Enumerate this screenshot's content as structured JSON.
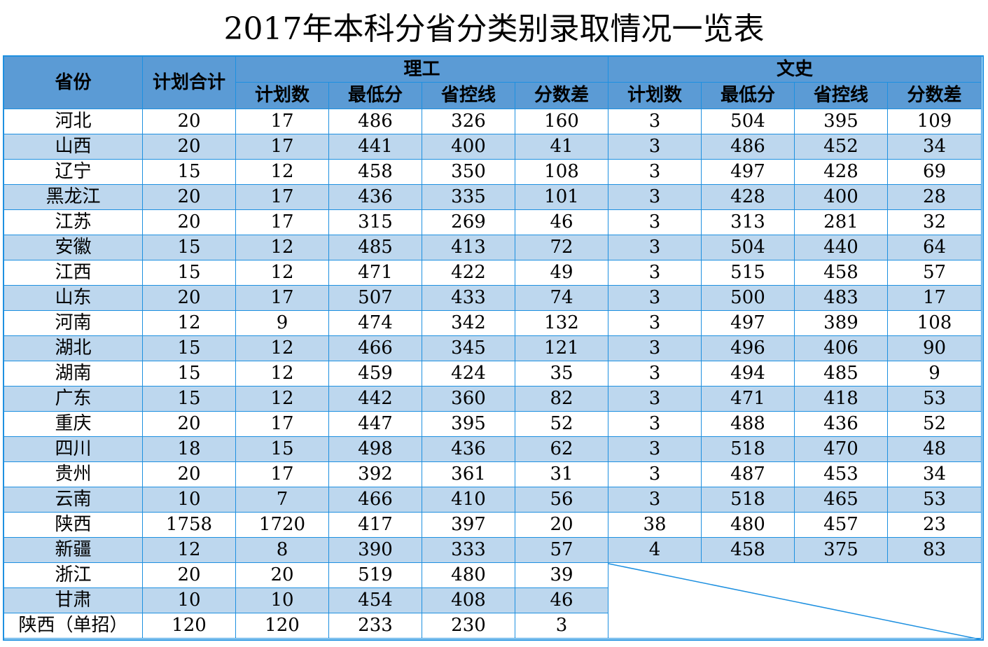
{
  "title": "2017年本科分省分类别录取情况一览表",
  "header": {
    "province": "省份",
    "plan_total": "计划合计",
    "science_group": "理工",
    "arts_group": "文史",
    "sub": [
      "计划数",
      "最低分",
      "省控线",
      "分数差"
    ]
  },
  "rows": [
    {
      "province": "河北",
      "total": "20",
      "sci": [
        "17",
        "486",
        "326",
        "160"
      ],
      "art": [
        "3",
        "504",
        "395",
        "109"
      ]
    },
    {
      "province": "山西",
      "total": "20",
      "sci": [
        "17",
        "441",
        "400",
        "41"
      ],
      "art": [
        "3",
        "486",
        "452",
        "34"
      ]
    },
    {
      "province": "辽宁",
      "total": "15",
      "sci": [
        "12",
        "458",
        "350",
        "108"
      ],
      "art": [
        "3",
        "497",
        "428",
        "69"
      ]
    },
    {
      "province": "黑龙江",
      "total": "20",
      "sci": [
        "17",
        "436",
        "335",
        "101"
      ],
      "art": [
        "3",
        "428",
        "400",
        "28"
      ]
    },
    {
      "province": "江苏",
      "total": "20",
      "sci": [
        "17",
        "315",
        "269",
        "46"
      ],
      "art": [
        "3",
        "313",
        "281",
        "32"
      ]
    },
    {
      "province": "安徽",
      "total": "15",
      "sci": [
        "12",
        "485",
        "413",
        "72"
      ],
      "art": [
        "3",
        "504",
        "440",
        "64"
      ]
    },
    {
      "province": "江西",
      "total": "15",
      "sci": [
        "12",
        "471",
        "422",
        "49"
      ],
      "art": [
        "3",
        "515",
        "458",
        "57"
      ]
    },
    {
      "province": "山东",
      "total": "20",
      "sci": [
        "17",
        "507",
        "433",
        "74"
      ],
      "art": [
        "3",
        "500",
        "483",
        "17"
      ]
    },
    {
      "province": "河南",
      "total": "12",
      "sci": [
        "9",
        "474",
        "342",
        "132"
      ],
      "art": [
        "3",
        "497",
        "389",
        "108"
      ]
    },
    {
      "province": "湖北",
      "total": "15",
      "sci": [
        "12",
        "466",
        "345",
        "121"
      ],
      "art": [
        "3",
        "496",
        "406",
        "90"
      ]
    },
    {
      "province": "湖南",
      "total": "15",
      "sci": [
        "12",
        "459",
        "424",
        "35"
      ],
      "art": [
        "3",
        "494",
        "485",
        "9"
      ]
    },
    {
      "province": "广东",
      "total": "15",
      "sci": [
        "12",
        "442",
        "360",
        "82"
      ],
      "art": [
        "3",
        "471",
        "418",
        "53"
      ]
    },
    {
      "province": "重庆",
      "total": "20",
      "sci": [
        "17",
        "447",
        "395",
        "52"
      ],
      "art": [
        "3",
        "488",
        "436",
        "52"
      ]
    },
    {
      "province": "四川",
      "total": "18",
      "sci": [
        "15",
        "498",
        "436",
        "62"
      ],
      "art": [
        "3",
        "518",
        "470",
        "48"
      ]
    },
    {
      "province": "贵州",
      "total": "20",
      "sci": [
        "17",
        "392",
        "361",
        "31"
      ],
      "art": [
        "3",
        "487",
        "453",
        "34"
      ]
    },
    {
      "province": "云南",
      "total": "10",
      "sci": [
        "7",
        "466",
        "410",
        "56"
      ],
      "art": [
        "3",
        "518",
        "465",
        "53"
      ]
    },
    {
      "province": "陕西",
      "total": "1758",
      "sci": [
        "1720",
        "417",
        "397",
        "20"
      ],
      "art": [
        "38",
        "480",
        "457",
        "23"
      ]
    },
    {
      "province": "新疆",
      "total": "12",
      "sci": [
        "8",
        "390",
        "333",
        "57"
      ],
      "art": [
        "4",
        "458",
        "375",
        "83"
      ]
    },
    {
      "province": "浙江",
      "total": "20",
      "sci": [
        "20",
        "519",
        "480",
        "39"
      ],
      "art": []
    },
    {
      "province": "甘肃",
      "total": "10",
      "sci": [
        "10",
        "454",
        "408",
        "46"
      ],
      "art": []
    },
    {
      "province": "陕西（单招）",
      "total": "120",
      "sci": [
        "120",
        "233",
        "230",
        "3"
      ],
      "art": []
    }
  ],
  "colors": {
    "header": "#5b9bd5",
    "band": "#bdd7ee",
    "border": "#1e90e0"
  }
}
